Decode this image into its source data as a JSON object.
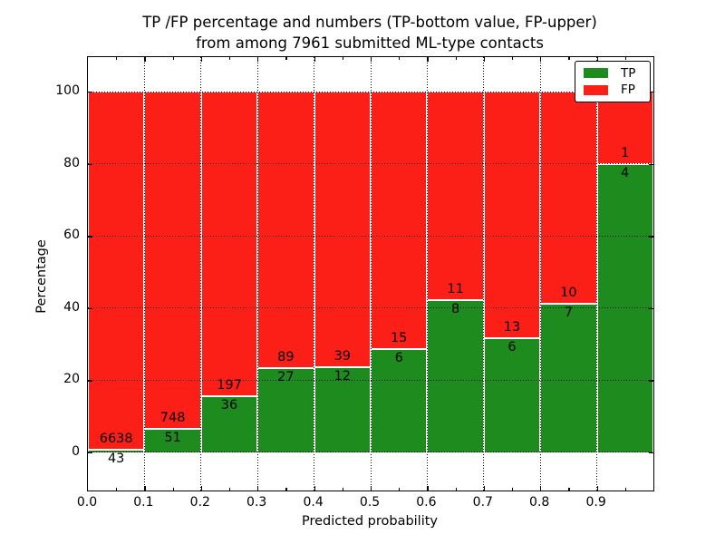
{
  "figure": {
    "title_line1": "TP /FP percentage and numbers (TP-bottom value, FP-upper)",
    "title_line2": "from among 7961 submitted ML-type contacts",
    "xlabel": "Predicted probability",
    "ylabel": "Percentage"
  },
  "colors": {
    "tp": "#1e8b1e",
    "fp": "#fb1f17",
    "grid": "#000000",
    "background": "#ffffff"
  },
  "chart_data": {
    "type": "bar",
    "stacked": true,
    "normalized": "each bin scaled to 100%",
    "title": "TP /FP percentage and numbers (TP-bottom value, FP-upper) from among 7961 submitted ML-type contacts",
    "xlabel": "Predicted probability",
    "ylabel": "Percentage",
    "total_contacts": 7961,
    "bin_width": 0.1,
    "bin_starts": [
      0.0,
      0.1,
      0.2,
      0.3,
      0.4,
      0.5,
      0.6,
      0.7,
      0.8,
      0.9
    ],
    "series": [
      {
        "name": "TP",
        "color": "#1e8b1e",
        "counts": [
          43,
          51,
          36,
          27,
          12,
          6,
          8,
          6,
          7,
          4
        ]
      },
      {
        "name": "FP",
        "color": "#fb1f17",
        "counts": [
          6638,
          748,
          197,
          89,
          39,
          15,
          11,
          13,
          10,
          1
        ]
      }
    ],
    "tp_percent_of_bin": [
      0.64,
      6.38,
      15.45,
      23.28,
      23.53,
      28.57,
      42.11,
      31.58,
      41.18,
      80.0
    ],
    "x_tick_labels": [
      "0.0",
      "0.1",
      "0.2",
      "0.3",
      "0.4",
      "0.5",
      "0.6",
      "0.7",
      "0.8",
      "0.9"
    ],
    "y_tick_labels": [
      "0",
      "20",
      "40",
      "60",
      "80",
      "100"
    ],
    "y_tick_values": [
      0,
      20,
      40,
      60,
      80,
      100
    ],
    "xlim": [
      0.0,
      1.0
    ],
    "ylim_displayed": [
      0,
      100
    ],
    "grid": true,
    "grid_style": "dotted",
    "legend_position": "upper right"
  }
}
